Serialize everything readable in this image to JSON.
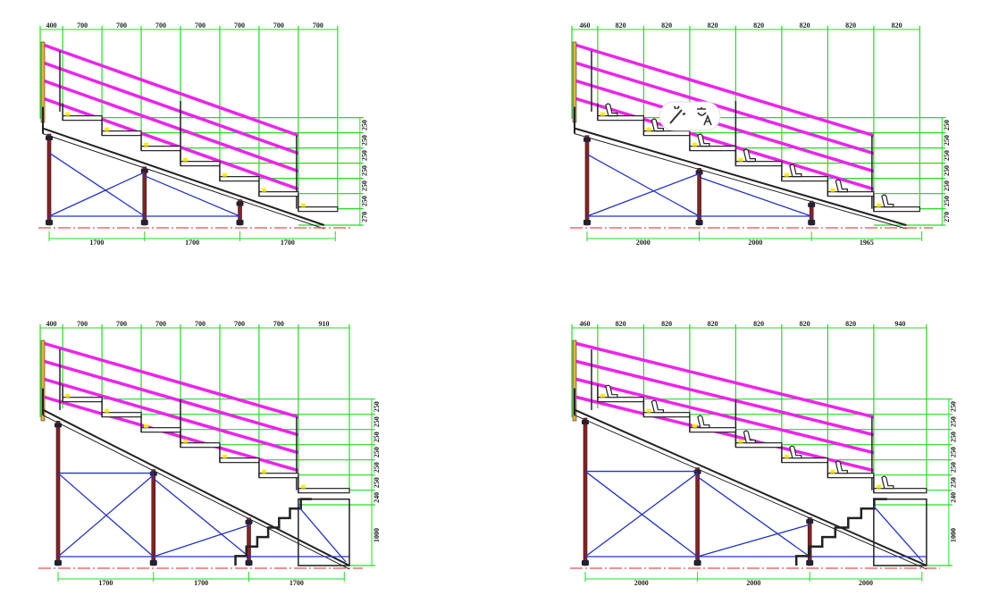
{
  "drawings": [
    {
      "top_dims": [
        400,
        700,
        700,
        700,
        700,
        700,
        700,
        700
      ],
      "side_dims": [
        250,
        250,
        250,
        250,
        250,
        250,
        270
      ],
      "bottom_dims": [
        1700,
        1700,
        1700
      ]
    },
    {
      "top_dims": [
        460,
        820,
        820,
        820,
        820,
        820,
        820,
        820
      ],
      "side_dims": [
        250,
        250,
        250,
        250,
        250,
        250,
        270
      ],
      "bottom_dims": [
        2000,
        2000,
        1965
      ]
    },
    {
      "top_dims": [
        400,
        700,
        700,
        700,
        700,
        700,
        700,
        910
      ],
      "side_dims": [
        250,
        250,
        250,
        250,
        250,
        250,
        240,
        1000
      ],
      "bottom_dims": [
        1700,
        1700,
        1700
      ]
    },
    {
      "top_dims": [
        460,
        820,
        820,
        820,
        820,
        820,
        820,
        940
      ],
      "side_dims": [
        250,
        250,
        250,
        250,
        250,
        250,
        240,
        1000
      ],
      "bottom_dims": [
        2000,
        2000,
        2000
      ]
    }
  ]
}
